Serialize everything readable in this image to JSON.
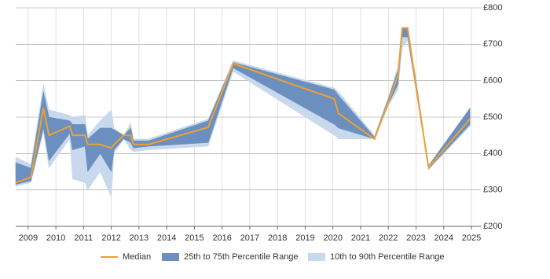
{
  "chart_data": {
    "type": "line",
    "x": [
      2008.55,
      2009.1,
      2009.55,
      2009.75,
      2010.5,
      2010.6,
      2011.05,
      2011.15,
      2011.6,
      2012.0,
      2012.1,
      2012.45,
      2012.7,
      2012.8,
      2013.35,
      2015.5,
      2016.4,
      2020.05,
      2020.2,
      2021.5,
      2022.0,
      2022.35,
      2022.5,
      2022.7,
      2023.0,
      2023.45,
      2024.95
    ],
    "series": [
      {
        "name": "Median",
        "color": "#f0a030",
        "values": [
          320,
          335,
          525,
          450,
          475,
          450,
          450,
          425,
          425,
          415,
          425,
          450,
          450,
          425,
          425,
          472,
          647,
          550,
          510,
          440,
          540,
          615,
          745,
          745,
          585,
          362,
          495
        ]
      },
      {
        "name": "25th to 75th Percentile Range",
        "color": "#6b8fbe",
        "lower": [
          315,
          325,
          470,
          380,
          455,
          410,
          420,
          350,
          400,
          350,
          410,
          440,
          430,
          415,
          420,
          430,
          635,
          480,
          470,
          440,
          535,
          590,
          720,
          720,
          575,
          358,
          480
        ],
        "upper": [
          375,
          360,
          570,
          500,
          490,
          480,
          480,
          440,
          470,
          470,
          465,
          450,
          470,
          435,
          435,
          490,
          650,
          575,
          560,
          445,
          550,
          630,
          745,
          745,
          600,
          366,
          525
        ]
      },
      {
        "name": "10th to 90th Percentile Range",
        "color": "#c8d9ed",
        "lower": [
          310,
          320,
          460,
          360,
          440,
          330,
          320,
          300,
          350,
          280,
          400,
          440,
          410,
          405,
          410,
          420,
          625,
          450,
          440,
          440,
          530,
          575,
          690,
          710,
          570,
          355,
          475
        ],
        "upper": [
          390,
          370,
          590,
          520,
          505,
          500,
          505,
          450,
          490,
          520,
          470,
          450,
          485,
          440,
          440,
          495,
          655,
          580,
          570,
          450,
          555,
          640,
          745,
          745,
          605,
          368,
          525
        ]
      }
    ],
    "xlim": [
      2008.55,
      2025.34
    ],
    "xticks": [
      2009,
      2010,
      2011,
      2012,
      2013,
      2014,
      2015,
      2016,
      2017,
      2018,
      2019,
      2020,
      2021,
      2022,
      2023,
      2024,
      2025
    ],
    "ylim": [
      200,
      800
    ],
    "yticks": [
      {
        "value": 200,
        "label": "£200"
      },
      {
        "value": 300,
        "label": "£300"
      },
      {
        "value": 400,
        "label": "£400"
      },
      {
        "value": 500,
        "label": "£500"
      },
      {
        "value": 600,
        "label": "£600"
      },
      {
        "value": 700,
        "label": "£700"
      },
      {
        "value": 800,
        "label": "£800"
      }
    ],
    "grid": true,
    "legend": "bottom"
  }
}
